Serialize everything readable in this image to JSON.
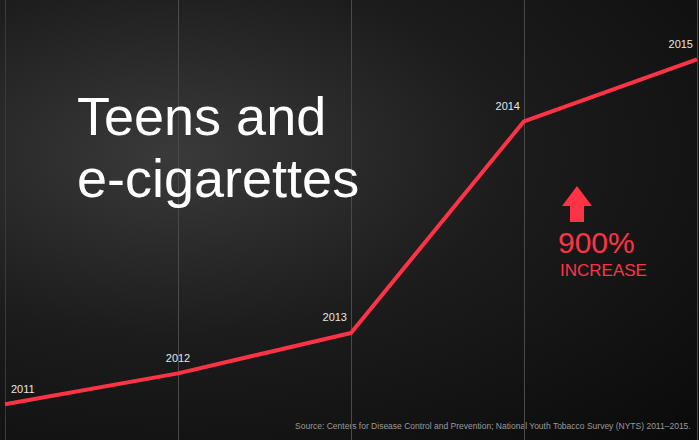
{
  "chart_data": {
    "type": "line",
    "title": "Teens and e-cigarettes",
    "categories": [
      "2011",
      "2012",
      "2013",
      "2014",
      "2015"
    ],
    "values": [
      1.5,
      2.8,
      4.5,
      13.4,
      16.0
    ],
    "color": "#ff3346",
    "ylim": [
      0,
      18.5
    ],
    "grid": true,
    "tick_labels": false,
    "annotations": [
      "900%",
      "INCREASE"
    ],
    "source": "Source: Centers for Disease Control and Prevention; National Youth Tobacco Survey (NYTS) 2011–2015."
  }
}
